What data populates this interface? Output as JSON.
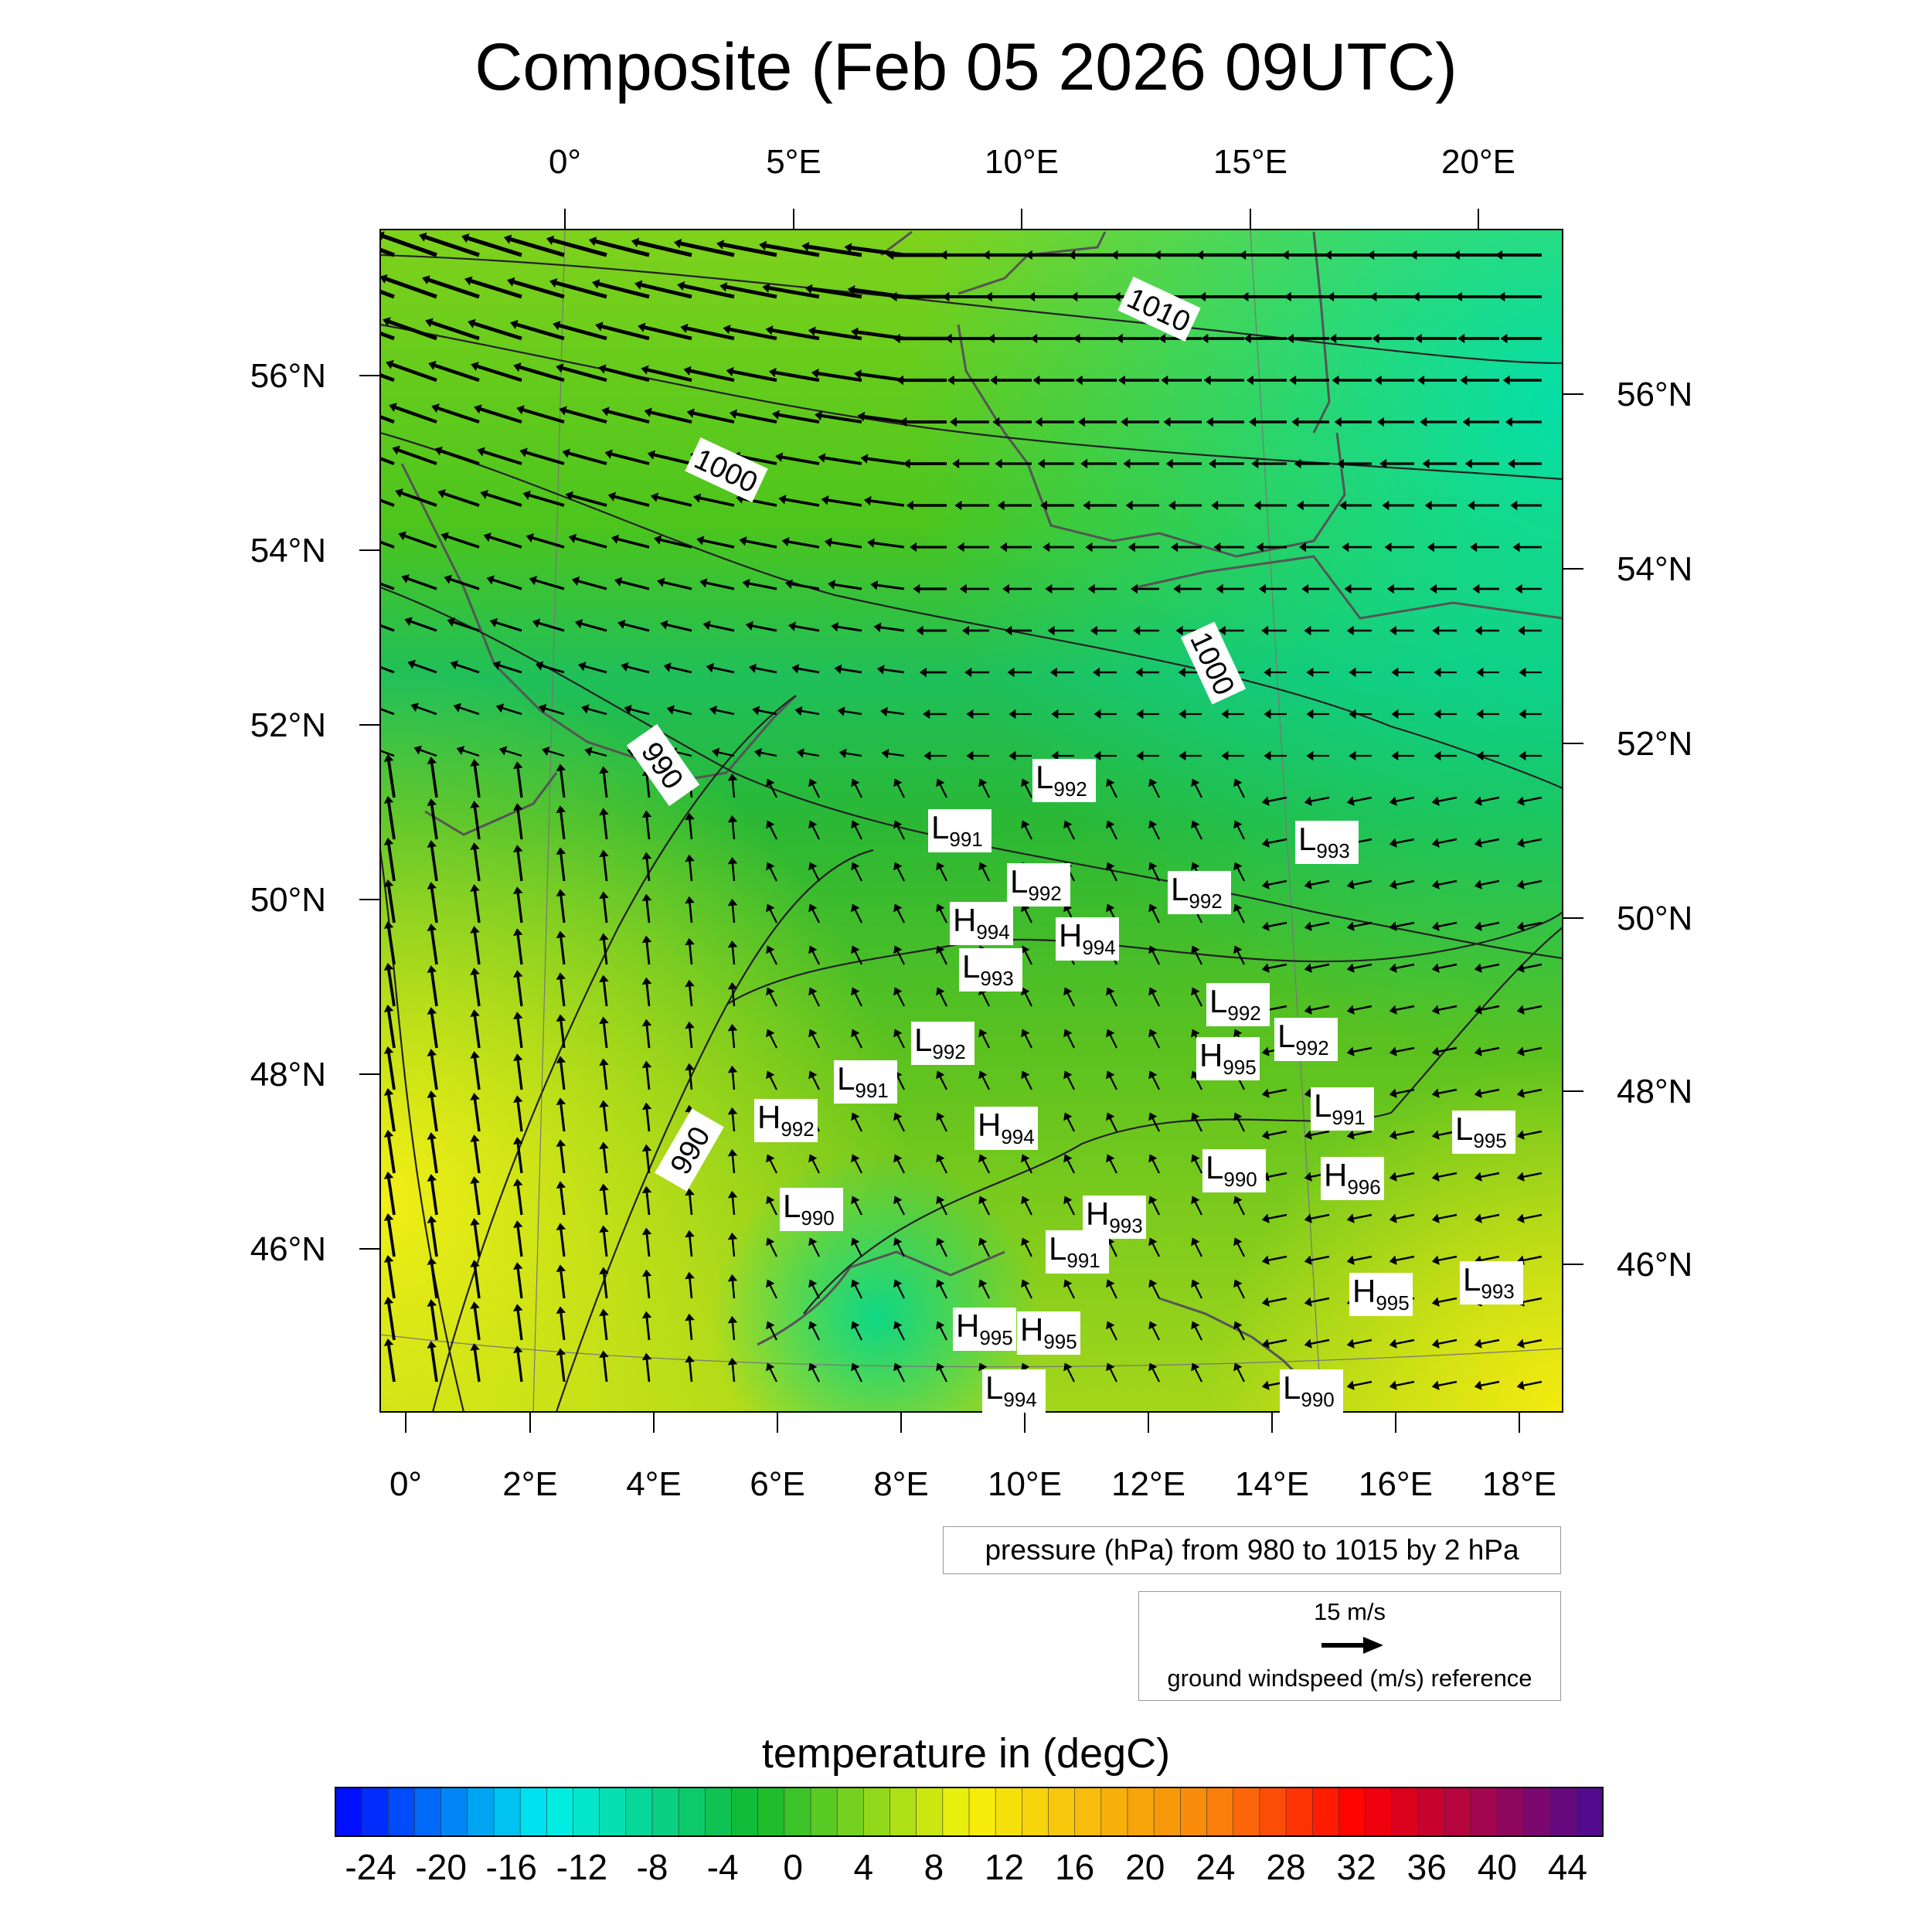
{
  "title": "Composite (Feb 05 2026 09UTC)",
  "map": {
    "top_lon_ticks": [
      "0°",
      "5°E",
      "10°E",
      "15°E",
      "20°E"
    ],
    "bottom_lon_ticks": [
      "0°",
      "2°E",
      "4°E",
      "6°E",
      "8°E",
      "10°E",
      "12°E",
      "14°E",
      "16°E",
      "18°E"
    ],
    "left_lat_ticks": [
      "56°N",
      "54°N",
      "52°N",
      "50°N",
      "48°N",
      "46°N"
    ],
    "right_lat_ticks": [
      "56°N",
      "54°N",
      "52°N",
      "50°N",
      "48°N",
      "46°N"
    ],
    "isobar_labels": [
      "1010",
      "1000",
      "1000",
      "990",
      "990"
    ],
    "pressure_centers": [
      {
        "type": "L",
        "value": "992"
      },
      {
        "type": "L",
        "value": "991"
      },
      {
        "type": "L",
        "value": "993"
      },
      {
        "type": "L",
        "value": "992"
      },
      {
        "type": "L",
        "value": "992"
      },
      {
        "type": "H",
        "value": "994"
      },
      {
        "type": "H",
        "value": "994"
      },
      {
        "type": "L",
        "value": "993"
      },
      {
        "type": "L",
        "value": "992"
      },
      {
        "type": "L",
        "value": "992"
      },
      {
        "type": "L",
        "value": "992"
      },
      {
        "type": "H",
        "value": "995"
      },
      {
        "type": "L",
        "value": "991"
      },
      {
        "type": "H",
        "value": "992"
      },
      {
        "type": "H",
        "value": "994"
      },
      {
        "type": "L",
        "value": "991"
      },
      {
        "type": "L",
        "value": "995"
      },
      {
        "type": "L",
        "value": "990"
      },
      {
        "type": "H",
        "value": "996"
      },
      {
        "type": "L",
        "value": "990"
      },
      {
        "type": "H",
        "value": "993"
      },
      {
        "type": "L",
        "value": "991"
      },
      {
        "type": "H",
        "value": "995"
      },
      {
        "type": "L",
        "value": "993"
      },
      {
        "type": "H",
        "value": "995"
      },
      {
        "type": "H",
        "value": "995"
      },
      {
        "type": "L",
        "value": "994"
      },
      {
        "type": "L",
        "value": "990"
      }
    ]
  },
  "pressure_legend": "pressure (hPa) from 980 to 1015 by 2 hPa",
  "wind_legend": {
    "value": "15 m/s",
    "label": "ground windspeed (m/s) reference"
  },
  "colorbar": {
    "title": "temperature in (degC)",
    "min": -26,
    "max": 46,
    "step": 1.5,
    "tick_labels": [
      "-24",
      "-20",
      "-16",
      "-12",
      "-8",
      "-4",
      "0",
      "4",
      "8",
      "12",
      "16",
      "20",
      "24",
      "28",
      "32",
      "36",
      "40",
      "44"
    ],
    "colors": {
      "cold": "#0000ff",
      "cyan": "#00f0ee",
      "green": "#11b82e",
      "yellow": "#f6f20c",
      "orange": "#f9820b",
      "red": "#ff0000",
      "purple": "#4a0b96"
    }
  }
}
